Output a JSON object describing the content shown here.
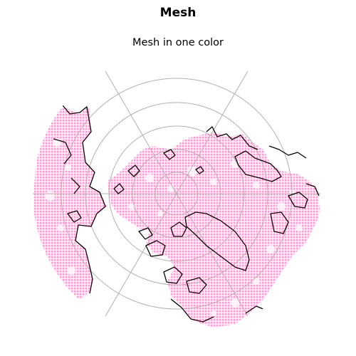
{
  "figure": {
    "title": "Mesh",
    "subtitle": "Mesh in one color"
  },
  "map": {
    "projection": "north-polar-stereographic",
    "graticule": "on",
    "coastlines": "on",
    "mesh_color": "#ff8ac6",
    "coastline_color": "#000000",
    "graticule_color": "#b0b0b0"
  }
}
